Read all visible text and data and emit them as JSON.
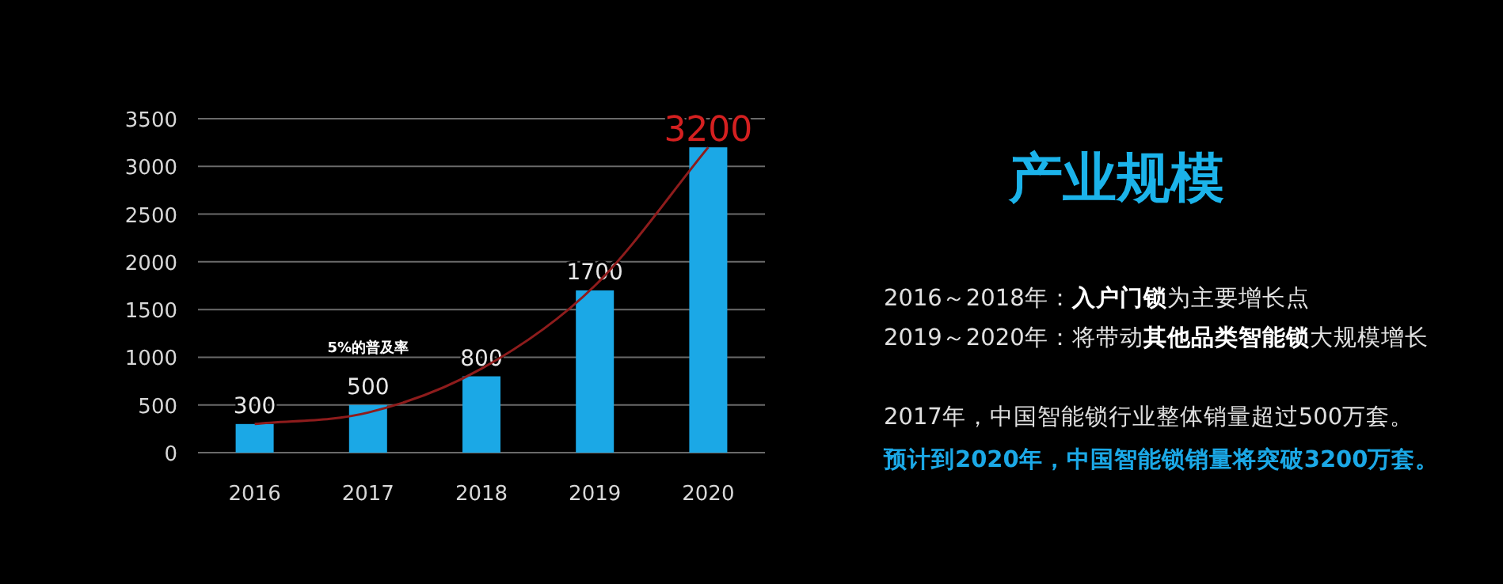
{
  "chart_data": {
    "type": "bar",
    "title": "产业规模",
    "categories": [
      "2016",
      "2017",
      "2018",
      "2019",
      "2020"
    ],
    "series": [
      {
        "color": "#1ba8e6",
        "values": [
          300,
          500,
          800,
          1700,
          3200
        ],
        "value_labels": [
          "300",
          "500",
          "800",
          "1700",
          "3200"
        ]
      },
      {
        "type": "line",
        "color": "#8e1c1c",
        "values": [
          300,
          420,
          880,
          1750,
          3200
        ]
      }
    ],
    "ylim": [
      0,
      3500
    ],
    "yticks": [
      0,
      500,
      1000,
      1500,
      2000,
      2500,
      3000,
      3500
    ],
    "grid": "y",
    "annotations": [
      "5%的普及率",
      "2016～2018年：**入户门锁**为主要增长点",
      "2019～2020年：将带动**其他品类智能锁**大规模增长",
      "2017年，中国智能锁行业整体销量超过500万套。",
      "预计到2020年，中国智能锁销量将突破3200万套。"
    ]
  }
}
